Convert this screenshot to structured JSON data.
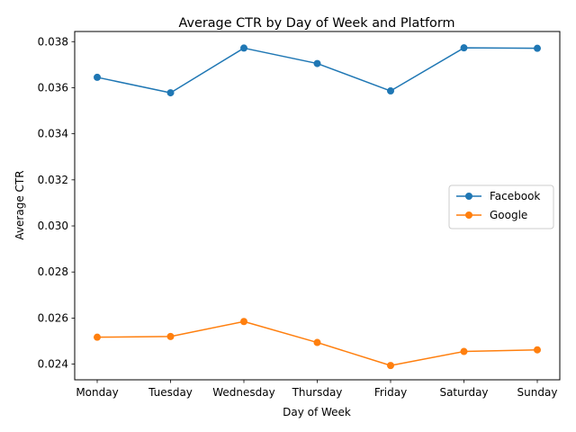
{
  "chart_data": {
    "type": "line",
    "title": "Average CTR by Day of Week and Platform",
    "xlabel": "Day of Week",
    "ylabel": "Average CTR",
    "categories": [
      "Monday",
      "Tuesday",
      "Wednesday",
      "Thursday",
      "Friday",
      "Saturday",
      "Sunday"
    ],
    "series": [
      {
        "name": "Facebook",
        "color": "#1f77b4",
        "marker": "circle",
        "values": [
          0.03645,
          0.03578,
          0.03772,
          0.03705,
          0.03586,
          0.03773,
          0.03771
        ]
      },
      {
        "name": "Google",
        "color": "#ff7f0e",
        "marker": "circle",
        "values": [
          0.02517,
          0.0252,
          0.02585,
          0.02494,
          0.02394,
          0.02455,
          0.02462
        ]
      }
    ],
    "yticks": [
      "0.024",
      "0.026",
      "0.028",
      "0.030",
      "0.032",
      "0.034",
      "0.036",
      "0.038"
    ],
    "ylim": [
      0.02332,
      0.03844
    ],
    "grid": false,
    "legend_position": "center-right"
  }
}
